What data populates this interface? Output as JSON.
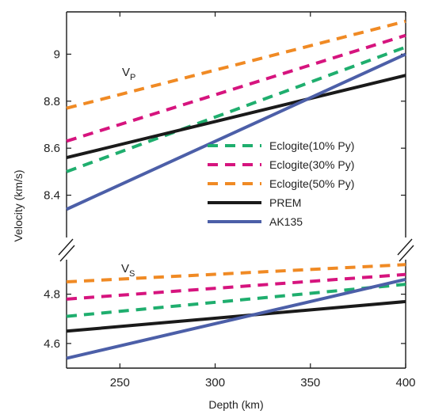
{
  "chart_data": {
    "type": "line",
    "xlabel": "Depth (km)",
    "ylabel": "Velocity (km/s)",
    "xlim": [
      222,
      400
    ],
    "x_ticks": [
      250,
      300,
      350,
      400
    ],
    "axis_break": true,
    "legend_placement": "center-right",
    "legend": [
      {
        "name": "Eclogite(10% Py)",
        "color": "#1fae6e",
        "dash": true
      },
      {
        "name": "Eclogite(30% Py)",
        "color": "#d6147e",
        "dash": true
      },
      {
        "name": "Eclogite(50% Py)",
        "color": "#f08a24",
        "dash": true
      },
      {
        "name": "PREM",
        "color": "#1a1a1a",
        "dash": false
      },
      {
        "name": "AK135",
        "color": "#4c5fa8",
        "dash": false
      }
    ],
    "panels": [
      {
        "label_main": "V",
        "label_sub": "P",
        "ylim": [
          8.22,
          9.18
        ],
        "y_ticks": [
          8.4,
          8.6,
          8.8,
          9.0
        ],
        "y_tick_labels": [
          "8.4",
          "8.6",
          "8.8",
          "9"
        ],
        "series": [
          {
            "name": "Eclogite(10% Py)",
            "x": [
              222,
              400
            ],
            "y": [
              8.5,
              9.03
            ]
          },
          {
            "name": "Eclogite(30% Py)",
            "x": [
              222,
              400
            ],
            "y": [
              8.63,
              9.08
            ]
          },
          {
            "name": "Eclogite(50% Py)",
            "x": [
              222,
              400
            ],
            "y": [
              8.77,
              9.14
            ]
          },
          {
            "name": "PREM",
            "x": [
              222,
              400
            ],
            "y": [
              8.56,
              8.91
            ]
          },
          {
            "name": "AK135",
            "x": [
              222,
              400
            ],
            "y": [
              8.34,
              9.0
            ]
          }
        ]
      },
      {
        "label_main": "V",
        "label_sub": "S",
        "ylim": [
          4.5,
          4.94
        ],
        "y_ticks": [
          4.6,
          4.8
        ],
        "y_tick_labels": [
          "4.6",
          "4.8"
        ],
        "series": [
          {
            "name": "Eclogite(10% Py)",
            "x": [
              222,
              400
            ],
            "y": [
              4.71,
              4.84
            ]
          },
          {
            "name": "Eclogite(30% Py)",
            "x": [
              222,
              400
            ],
            "y": [
              4.78,
              4.88
            ]
          },
          {
            "name": "Eclogite(50% Py)",
            "x": [
              222,
              400
            ],
            "y": [
              4.85,
              4.92
            ]
          },
          {
            "name": "PREM",
            "x": [
              222,
              400
            ],
            "y": [
              4.65,
              4.77
            ]
          },
          {
            "name": "AK135",
            "x": [
              222,
              400
            ],
            "y": [
              4.54,
              4.86
            ]
          }
        ]
      }
    ]
  }
}
